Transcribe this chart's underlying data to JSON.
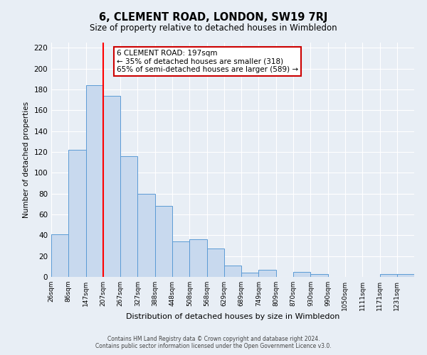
{
  "title": "6, CLEMENT ROAD, LONDON, SW19 7RJ",
  "subtitle": "Size of property relative to detached houses in Wimbledon",
  "xlabel": "Distribution of detached houses by size in Wimbledon",
  "ylabel": "Number of detached properties",
  "bin_labels": [
    "26sqm",
    "86sqm",
    "147sqm",
    "207sqm",
    "267sqm",
    "327sqm",
    "388sqm",
    "448sqm",
    "508sqm",
    "568sqm",
    "629sqm",
    "689sqm",
    "749sqm",
    "809sqm",
    "870sqm",
    "930sqm",
    "990sqm",
    "1050sqm",
    "1111sqm",
    "1171sqm",
    "1231sqm"
  ],
  "bar_heights": [
    41,
    122,
    184,
    174,
    116,
    80,
    68,
    34,
    36,
    27,
    11,
    4,
    7,
    0,
    5,
    3,
    0,
    0,
    0,
    3,
    3
  ],
  "bar_color": "#c8d9ee",
  "bar_edge_color": "#5b9bd5",
  "background_color": "#e8eef5",
  "grid_color": "#ffffff",
  "ylim": [
    0,
    225
  ],
  "yticks": [
    0,
    20,
    40,
    60,
    80,
    100,
    120,
    140,
    160,
    180,
    200,
    220
  ],
  "bin_edges": [
    26,
    86,
    147,
    207,
    267,
    327,
    388,
    448,
    508,
    568,
    629,
    689,
    749,
    809,
    870,
    930,
    990,
    1050,
    1111,
    1171,
    1231,
    1291
  ],
  "red_line_x": 207,
  "annotation_title": "6 CLEMENT ROAD: 197sqm",
  "annotation_line1": "← 35% of detached houses are smaller (318)",
  "annotation_line2": "65% of semi-detached houses are larger (589) →",
  "annotation_box_color": "#ffffff",
  "annotation_box_edge": "#cc0000",
  "footer1": "Contains HM Land Registry data © Crown copyright and database right 2024.",
  "footer2": "Contains public sector information licensed under the Open Government Licence v3.0."
}
